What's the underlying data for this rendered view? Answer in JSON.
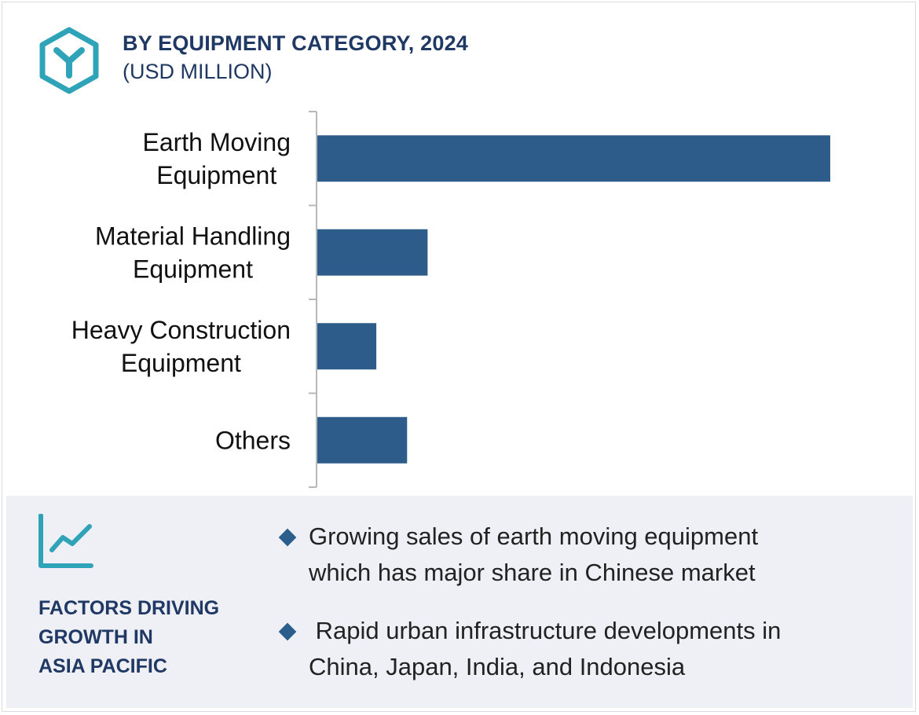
{
  "header": {
    "title": "BY EQUIPMENT CATEGORY, 2024",
    "subtitle": "(USD MILLION)",
    "icon": "hexagon-y-logo-icon"
  },
  "chart_data": {
    "type": "bar",
    "orientation": "horizontal",
    "title": "BY EQUIPMENT CATEGORY, 2024",
    "subtitle": "(USD MILLION)",
    "categories": [
      [
        "Earth Moving",
        "Equipment"
      ],
      [
        "Material Handling",
        "Equipment"
      ],
      [
        "Heavy Construction",
        "Equipment"
      ],
      [
        "Others"
      ]
    ],
    "values": [
      100,
      21.5,
      11.5,
      17.5
    ],
    "value_axis_shown": false,
    "grid": false,
    "legend": "none",
    "bar_color": "#2d5b8a"
  },
  "factors": {
    "icon": "trend-line-chart-icon",
    "title_lines": [
      "FACTORS DRIVING",
      "GROWTH IN",
      "ASIA PACIFIC"
    ],
    "bullets": [
      [
        "Growing sales of earth moving equipment",
        "which has major share in Chinese market"
      ],
      [
        " Rapid urban infrastructure developments in",
        "China, Japan, India, and Indonesia"
      ]
    ]
  },
  "colors": {
    "accent": "#2fa4b8",
    "title": "#1f3864",
    "bar": "#2d5b8a",
    "panel_bg": "#eef0f5"
  }
}
